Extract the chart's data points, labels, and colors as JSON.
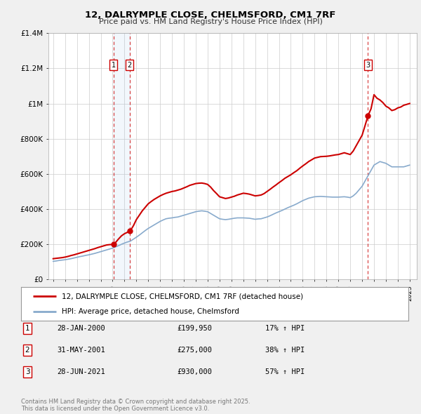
{
  "title": "12, DALRYMPLE CLOSE, CHELMSFORD, CM1 7RF",
  "subtitle": "Price paid vs. HM Land Registry's House Price Index (HPI)",
  "line1_label": "12, DALRYMPLE CLOSE, CHELMSFORD, CM1 7RF (detached house)",
  "line2_label": "HPI: Average price, detached house, Chelmsford",
  "line1_color": "#cc0000",
  "line2_color": "#88aacc",
  "bg_color": "#f0f0f0",
  "plot_bg_color": "#ffffff",
  "grid_color": "#cccccc",
  "ylim": [
    0,
    1400000
  ],
  "yticks": [
    0,
    200000,
    400000,
    600000,
    800000,
    1000000,
    1200000,
    1400000
  ],
  "ytick_labels": [
    "£0",
    "£200K",
    "£400K",
    "£600K",
    "£800K",
    "£1M",
    "£1.2M",
    "£1.4M"
  ],
  "xlim_start": 1994.6,
  "xlim_end": 2025.6,
  "transactions": [
    {
      "num": 1,
      "date": 2000.08,
      "price": 199950,
      "label": "28-JAN-2000",
      "pct": "17%"
    },
    {
      "num": 2,
      "date": 2001.42,
      "price": 275000,
      "label": "31-MAY-2001",
      "pct": "38%"
    },
    {
      "num": 3,
      "date": 2021.49,
      "price": 930000,
      "label": "28-JUN-2021",
      "pct": "57%"
    }
  ],
  "footer": "Contains HM Land Registry data © Crown copyright and database right 2025.\nThis data is licensed under the Open Government Licence v3.0.",
  "hpi_line": {
    "x": [
      1995.0,
      1995.25,
      1995.5,
      1995.75,
      1996.0,
      1996.25,
      1996.5,
      1996.75,
      1997.0,
      1997.25,
      1997.5,
      1997.75,
      1998.0,
      1998.25,
      1998.5,
      1998.75,
      1999.0,
      1999.25,
      1999.5,
      1999.75,
      2000.0,
      2000.25,
      2000.5,
      2000.75,
      2001.0,
      2001.25,
      2001.5,
      2001.75,
      2002.0,
      2002.25,
      2002.5,
      2002.75,
      2003.0,
      2003.25,
      2003.5,
      2003.75,
      2004.0,
      2004.25,
      2004.5,
      2004.75,
      2005.0,
      2005.25,
      2005.5,
      2005.75,
      2006.0,
      2006.25,
      2006.5,
      2006.75,
      2007.0,
      2007.25,
      2007.5,
      2007.75,
      2008.0,
      2008.25,
      2008.5,
      2008.75,
      2009.0,
      2009.25,
      2009.5,
      2009.75,
      2010.0,
      2010.25,
      2010.5,
      2010.75,
      2011.0,
      2011.25,
      2011.5,
      2011.75,
      2012.0,
      2012.25,
      2012.5,
      2012.75,
      2013.0,
      2013.25,
      2013.5,
      2013.75,
      2014.0,
      2014.25,
      2014.5,
      2014.75,
      2015.0,
      2015.25,
      2015.5,
      2015.75,
      2016.0,
      2016.25,
      2016.5,
      2016.75,
      2017.0,
      2017.25,
      2017.5,
      2017.75,
      2018.0,
      2018.25,
      2018.5,
      2018.75,
      2019.0,
      2019.25,
      2019.5,
      2019.75,
      2020.0,
      2020.25,
      2020.5,
      2020.75,
      2021.0,
      2021.25,
      2021.5,
      2021.75,
      2022.0,
      2022.25,
      2022.5,
      2022.75,
      2023.0,
      2023.25,
      2023.5,
      2023.75,
      2024.0,
      2024.25,
      2024.5,
      2024.75,
      2025.0
    ],
    "y": [
      103000,
      105000,
      108000,
      110000,
      112000,
      115000,
      118000,
      122000,
      126000,
      130000,
      133000,
      137000,
      140000,
      144000,
      148000,
      153000,
      158000,
      163000,
      168000,
      173000,
      178000,
      185000,
      192000,
      200000,
      207000,
      213000,
      218000,
      229000,
      240000,
      252000,
      265000,
      278000,
      290000,
      300000,
      310000,
      320000,
      330000,
      338000,
      345000,
      348000,
      350000,
      353000,
      355000,
      360000,
      365000,
      370000,
      375000,
      380000,
      385000,
      388000,
      390000,
      388000,
      385000,
      375000,
      365000,
      355000,
      345000,
      342000,
      340000,
      342000,
      345000,
      348000,
      350000,
      350000,
      350000,
      349000,
      348000,
      345000,
      342000,
      344000,
      345000,
      350000,
      355000,
      362000,
      370000,
      378000,
      385000,
      392000,
      400000,
      408000,
      415000,
      422000,
      430000,
      439000,
      448000,
      455000,
      462000,
      466000,
      470000,
      471000,
      472000,
      471000,
      470000,
      469000,
      468000,
      468000,
      468000,
      469000,
      470000,
      468000,
      465000,
      475000,
      490000,
      510000,
      530000,
      560000,
      590000,
      620000,
      650000,
      660000,
      670000,
      665000,
      660000,
      650000,
      640000,
      640000,
      640000,
      640000,
      640000,
      645000,
      650000
    ]
  },
  "price_line": {
    "x": [
      1995.0,
      1995.25,
      1995.5,
      1995.75,
      1996.0,
      1996.25,
      1996.5,
      1996.75,
      1997.0,
      1997.25,
      1997.5,
      1997.75,
      1998.0,
      1998.25,
      1998.5,
      1998.75,
      1999.0,
      1999.25,
      1999.5,
      1999.75,
      2000.0,
      2000.08,
      2000.25,
      2000.5,
      2000.75,
      2001.0,
      2001.25,
      2001.42,
      2001.5,
      2001.75,
      2002.0,
      2002.25,
      2002.5,
      2002.75,
      2003.0,
      2003.25,
      2003.5,
      2003.75,
      2004.0,
      2004.25,
      2004.5,
      2004.75,
      2005.0,
      2005.25,
      2005.5,
      2005.75,
      2006.0,
      2006.25,
      2006.5,
      2006.75,
      2007.0,
      2007.25,
      2007.5,
      2007.75,
      2008.0,
      2008.25,
      2008.5,
      2008.75,
      2009.0,
      2009.25,
      2009.5,
      2009.75,
      2010.0,
      2010.25,
      2010.5,
      2010.75,
      2011.0,
      2011.25,
      2011.5,
      2011.75,
      2012.0,
      2012.25,
      2012.5,
      2012.75,
      2013.0,
      2013.25,
      2013.5,
      2013.75,
      2014.0,
      2014.25,
      2014.5,
      2014.75,
      2015.0,
      2015.25,
      2015.5,
      2015.75,
      2016.0,
      2016.25,
      2016.5,
      2016.75,
      2017.0,
      2017.25,
      2017.5,
      2017.75,
      2018.0,
      2018.25,
      2018.5,
      2018.75,
      2019.0,
      2019.25,
      2019.5,
      2019.75,
      2020.0,
      2020.25,
      2020.5,
      2020.75,
      2021.0,
      2021.25,
      2021.49,
      2021.75,
      2022.0,
      2022.25,
      2022.5,
      2022.75,
      2023.0,
      2023.25,
      2023.5,
      2023.75,
      2024.0,
      2024.25,
      2024.5,
      2024.75,
      2025.0
    ],
    "y": [
      118000,
      120000,
      122000,
      124000,
      127000,
      131000,
      136000,
      140000,
      145000,
      150000,
      155000,
      160000,
      165000,
      170000,
      175000,
      181000,
      186000,
      191000,
      196000,
      198000,
      199000,
      199950,
      210000,
      230000,
      248000,
      260000,
      268000,
      275000,
      278000,
      305000,
      340000,
      365000,
      390000,
      410000,
      430000,
      443000,
      455000,
      465000,
      475000,
      483000,
      490000,
      495000,
      500000,
      503000,
      508000,
      513000,
      520000,
      527000,
      535000,
      540000,
      545000,
      547000,
      548000,
      545000,
      540000,
      525000,
      505000,
      488000,
      470000,
      465000,
      460000,
      463000,
      468000,
      473000,
      480000,
      485000,
      490000,
      488000,
      485000,
      480000,
      475000,
      477000,
      480000,
      488000,
      500000,
      512000,
      525000,
      537000,
      550000,
      562000,
      575000,
      585000,
      595000,
      607000,
      618000,
      632000,
      645000,
      657000,
      670000,
      680000,
      690000,
      694000,
      698000,
      699000,
      700000,
      702000,
      705000,
      708000,
      710000,
      715000,
      720000,
      715000,
      710000,
      730000,
      760000,
      790000,
      820000,
      875000,
      930000,
      970000,
      1050000,
      1030000,
      1020000,
      1005000,
      985000,
      975000,
      960000,
      965000,
      975000,
      980000,
      990000,
      995000,
      1000000
    ]
  }
}
